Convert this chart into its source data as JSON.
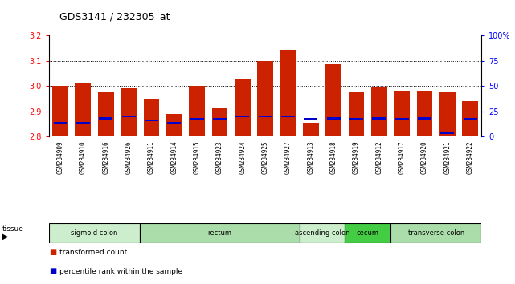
{
  "title": "GDS3141 / 232305_at",
  "samples": [
    "GSM234909",
    "GSM234910",
    "GSM234916",
    "GSM234926",
    "GSM234911",
    "GSM234914",
    "GSM234915",
    "GSM234923",
    "GSM234924",
    "GSM234925",
    "GSM234927",
    "GSM234913",
    "GSM234918",
    "GSM234919",
    "GSM234912",
    "GSM234917",
    "GSM234920",
    "GSM234921",
    "GSM234922"
  ],
  "red_values": [
    3.0,
    3.01,
    2.975,
    2.99,
    2.945,
    2.89,
    3.0,
    2.91,
    3.03,
    3.1,
    3.145,
    2.855,
    3.085,
    2.975,
    2.995,
    2.98,
    2.98,
    2.975,
    2.94
  ],
  "blue_percentiles": [
    13,
    13,
    18,
    20,
    16,
    13,
    17,
    17,
    20,
    20,
    20,
    17,
    18,
    17,
    18,
    17,
    18,
    3,
    17
  ],
  "ymin": 2.8,
  "ymax": 3.2,
  "yticks": [
    2.8,
    2.9,
    3.0,
    3.1,
    3.2
  ],
  "right_yticks": [
    0,
    25,
    50,
    75,
    100
  ],
  "tissue_groups": [
    {
      "label": "sigmoid colon",
      "start": 0,
      "end": 4,
      "color": "#cceecc"
    },
    {
      "label": "rectum",
      "start": 4,
      "end": 11,
      "color": "#aaddaa"
    },
    {
      "label": "ascending colon",
      "start": 11,
      "end": 13,
      "color": "#cceecc"
    },
    {
      "label": "cecum",
      "start": 13,
      "end": 15,
      "color": "#44cc44"
    },
    {
      "label": "transverse colon",
      "start": 15,
      "end": 19,
      "color": "#aaddaa"
    }
  ],
  "bar_color_red": "#cc2200",
  "bar_color_blue": "#0000cc",
  "xlabels_bg": "#cccccc",
  "plot_bg": "#ffffff",
  "blue_bar_height": 0.008,
  "bar_width": 0.7
}
